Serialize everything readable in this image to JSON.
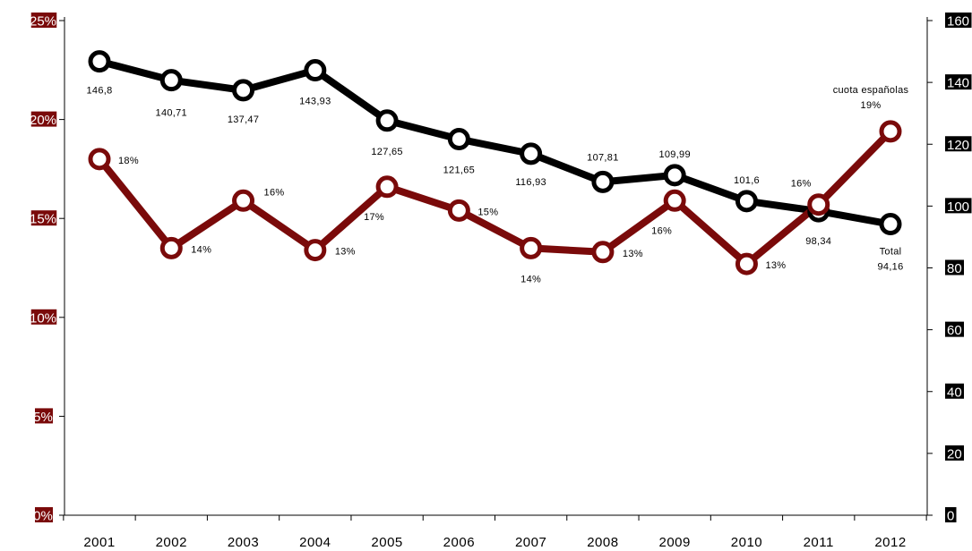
{
  "chart_data": {
    "type": "line",
    "categories": [
      "2001",
      "2002",
      "2003",
      "2004",
      "2005",
      "2006",
      "2007",
      "2008",
      "2009",
      "2010",
      "2011",
      "2012"
    ],
    "y_left": {
      "ylim": [
        0,
        0.25
      ],
      "tick_labels": [
        "0%",
        "5%",
        "10%",
        "15%",
        "20%",
        "25%"
      ],
      "color": "#7a0a0a"
    },
    "y_right": {
      "ylim": [
        0,
        160
      ],
      "tick_labels": [
        "0",
        "20",
        "40",
        "60",
        "80",
        "100",
        "120",
        "140",
        "160"
      ],
      "color": "#000000"
    },
    "series": [
      {
        "axis": "right",
        "color": "#000000",
        "values": [
          146.8,
          140.71,
          137.47,
          143.93,
          127.65,
          121.65,
          116.93,
          107.81,
          109.99,
          101.6,
          98.34,
          94.16
        ],
        "labels": [
          "146,8",
          "140,71",
          "137,47",
          "143,93",
          "127,65",
          "121,65",
          "116,93",
          "107,81",
          "109,99",
          "101,6",
          "98,34",
          "94,16"
        ]
      },
      {
        "axis": "left",
        "color": "#7a0a0a",
        "values": [
          0.18,
          0.135,
          0.159,
          0.134,
          0.166,
          0.154,
          0.135,
          0.133,
          0.159,
          0.127,
          0.157,
          0.194
        ],
        "labels": [
          "18%",
          "14%",
          "16%",
          "13%",
          "17%",
          "15%",
          "14%",
          "13%",
          "16%",
          "13%",
          "16%",
          "19%"
        ]
      }
    ],
    "annotations": {
      "cuota_label": "cuota españolas",
      "total_label": "Total"
    },
    "grid": false,
    "legend": "none"
  }
}
